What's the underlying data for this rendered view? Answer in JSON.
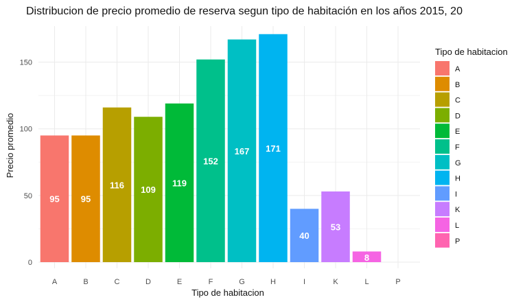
{
  "chart_data": {
    "type": "bar",
    "title": "Distribucion de precio promedio de reserva segun tipo de habitación en los años 2015, 20",
    "xlabel": "Tipo de habitacion",
    "ylabel": "Precio promedio",
    "categories": [
      "A",
      "B",
      "C",
      "D",
      "E",
      "F",
      "G",
      "H",
      "I",
      "K",
      "L",
      "P"
    ],
    "values": [
      95,
      95,
      116,
      109,
      119,
      152,
      167,
      171,
      40,
      53,
      8,
      0
    ],
    "data_labels": [
      "95",
      "95",
      "116",
      "109",
      "119",
      "152",
      "167",
      "171",
      "40",
      "53",
      "8",
      ""
    ],
    "y_ticks": [
      "0",
      "50",
      "100",
      "150"
    ],
    "ylim": [
      0,
      175
    ],
    "grid": true,
    "legend": {
      "title": "Tipo de habitacion",
      "placement": "right",
      "items": [
        "A",
        "B",
        "C",
        "D",
        "E",
        "F",
        "G",
        "H",
        "I",
        "K",
        "L",
        "P"
      ]
    },
    "colors": {
      "A": "#F8766D",
      "B": "#DE8C00",
      "C": "#B79F00",
      "D": "#7CAE00",
      "E": "#00BA38",
      "F": "#00C08B",
      "G": "#00BFC4",
      "H": "#00B4F0",
      "I": "#619CFF",
      "K": "#C77CFF",
      "L": "#F564E3",
      "P": "#FF64B0"
    }
  }
}
